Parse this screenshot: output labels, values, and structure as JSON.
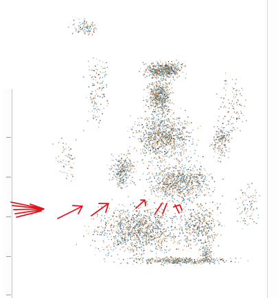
{
  "viewer": {
    "background_color": "#ffffff",
    "axis_color": "#9c9c9c",
    "annotation_color": "#e0141c"
  },
  "point_cloud": {
    "palette": [
      "#5b4a3f",
      "#2f7fa8",
      "#c07a32",
      "#8a6a55",
      "#3b9bc4",
      "#b8a27a",
      "#4d3f36",
      "#9a8f86",
      "#6e8fa6",
      "#d59a4a"
    ]
  },
  "annotations": {
    "arrows": [
      {
        "name": "annotation-arrow-1"
      },
      {
        "name": "annotation-arrow-2"
      },
      {
        "name": "annotation-arrow-3"
      },
      {
        "name": "annotation-arrow-4"
      },
      {
        "name": "annotation-arrow-5"
      },
      {
        "name": "annotation-arrow-6"
      },
      {
        "name": "annotation-arrow-7"
      }
    ]
  }
}
